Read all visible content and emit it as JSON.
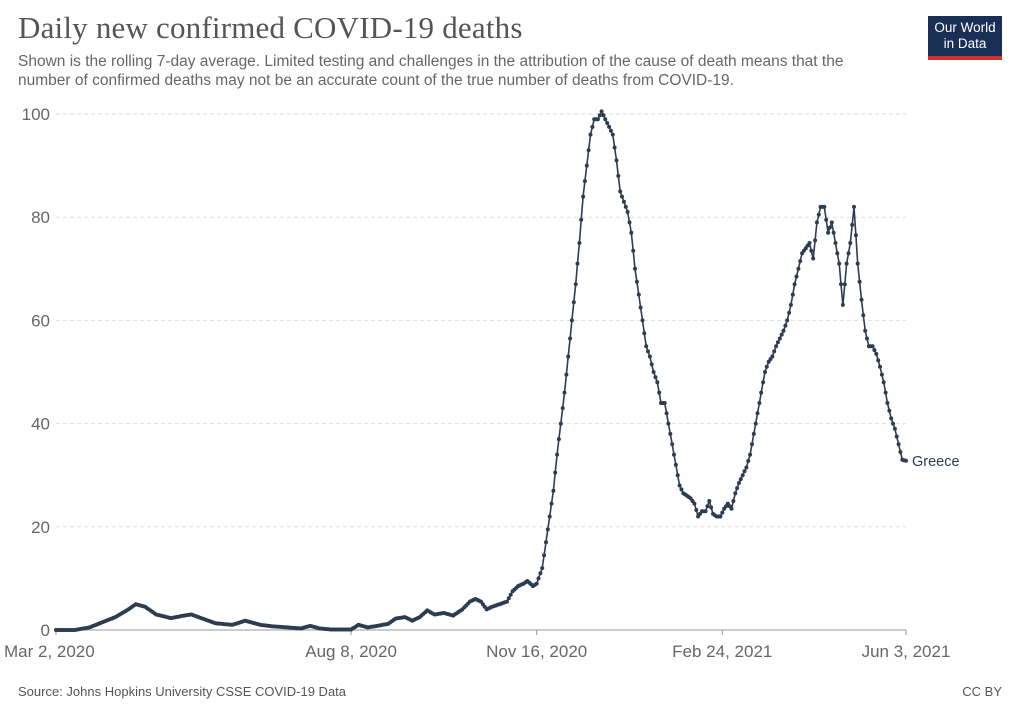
{
  "title": "Daily new confirmed COVID-19 deaths",
  "subtitle": "Shown is the rolling 7-day average. Limited testing and challenges in the attribution of the cause of death means that the number of confirmed deaths may not be an accurate count of the true number of deaths from COVID-19.",
  "logo": {
    "line1": "Our World",
    "line2": "in Data"
  },
  "footer": {
    "source": "Source: Johns Hopkins University CSSE COVID-19 Data",
    "license": "CC BY"
  },
  "colors": {
    "line": "#2e3c52",
    "grid": "#dddddd",
    "axis_text": "#666666",
    "logo_bg": "#1a2f56",
    "logo_accent": "#d0312d"
  },
  "chart_data": {
    "type": "line",
    "xlim": [
      "2020-03-02",
      "2021-06-03"
    ],
    "ylim": [
      0,
      100
    ],
    "y_ticks": [
      0,
      20,
      40,
      60,
      80,
      100
    ],
    "x_ticks": [
      "2020-03-02",
      "2020-08-08",
      "2020-11-16",
      "2021-02-24",
      "2021-06-03"
    ],
    "x_tick_labels": [
      "Mar 2, 2020",
      "Aug 8, 2020",
      "Nov 16, 2020",
      "Feb 24, 2021",
      "Jun 3, 2021"
    ],
    "grid": "horizontal-dashed",
    "series": [
      {
        "name": "Greece",
        "label_position": "end",
        "points": [
          [
            "2020-03-02",
            0
          ],
          [
            "2020-03-12",
            0
          ],
          [
            "2020-03-20",
            0.5
          ],
          [
            "2020-03-27",
            1.5
          ],
          [
            "2020-04-03",
            2.5
          ],
          [
            "2020-04-10",
            4
          ],
          [
            "2020-04-14",
            5
          ],
          [
            "2020-04-19",
            4.5
          ],
          [
            "2020-04-25",
            3
          ],
          [
            "2020-05-03",
            2.3
          ],
          [
            "2020-05-10",
            2.8
          ],
          [
            "2020-05-14",
            3
          ],
          [
            "2020-05-20",
            2.2
          ],
          [
            "2020-05-27",
            1.3
          ],
          [
            "2020-06-05",
            1
          ],
          [
            "2020-06-12",
            1.8
          ],
          [
            "2020-06-20",
            1
          ],
          [
            "2020-06-27",
            0.7
          ],
          [
            "2020-07-05",
            0.5
          ],
          [
            "2020-07-12",
            0.3
          ],
          [
            "2020-07-17",
            0.8
          ],
          [
            "2020-07-22",
            0.3
          ],
          [
            "2020-07-28",
            0.1
          ],
          [
            "2020-08-04",
            0.1
          ],
          [
            "2020-08-08",
            0.1
          ],
          [
            "2020-08-12",
            1
          ],
          [
            "2020-08-17",
            0.5
          ],
          [
            "2020-08-22",
            0.8
          ],
          [
            "2020-08-28",
            1.2
          ],
          [
            "2020-09-01",
            2.2
          ],
          [
            "2020-09-06",
            2.5
          ],
          [
            "2020-09-10",
            1.8
          ],
          [
            "2020-09-14",
            2.5
          ],
          [
            "2020-09-18",
            3.8
          ],
          [
            "2020-09-22",
            3
          ],
          [
            "2020-09-27",
            3.3
          ],
          [
            "2020-10-02",
            2.8
          ],
          [
            "2020-10-07",
            4
          ],
          [
            "2020-10-11",
            5.5
          ],
          [
            "2020-10-14",
            6
          ],
          [
            "2020-10-17",
            5.5
          ],
          [
            "2020-10-20",
            4
          ],
          [
            "2020-10-23",
            4.5
          ],
          [
            "2020-10-27",
            5
          ],
          [
            "2020-10-31",
            5.5
          ],
          [
            "2020-11-03",
            7.5
          ],
          [
            "2020-11-06",
            8.5
          ],
          [
            "2020-11-09",
            9
          ],
          [
            "2020-11-11",
            9.5
          ],
          [
            "2020-11-14",
            8.5
          ],
          [
            "2020-11-16",
            9
          ],
          [
            "2020-11-19",
            12
          ],
          [
            "2020-11-21",
            17
          ],
          [
            "2020-11-23",
            22
          ],
          [
            "2020-11-25",
            27
          ],
          [
            "2020-11-27",
            34
          ],
          [
            "2020-11-29",
            40
          ],
          [
            "2020-12-01",
            46
          ],
          [
            "2020-12-03",
            53
          ],
          [
            "2020-12-05",
            60
          ],
          [
            "2020-12-07",
            67
          ],
          [
            "2020-12-09",
            75
          ],
          [
            "2020-12-11",
            84
          ],
          [
            "2020-12-13",
            90
          ],
          [
            "2020-12-15",
            96
          ],
          [
            "2020-12-17",
            99
          ],
          [
            "2020-12-19",
            99
          ],
          [
            "2020-12-21",
            100.5
          ],
          [
            "2020-12-23",
            99
          ],
          [
            "2020-12-25",
            97.5
          ],
          [
            "2020-12-27",
            96
          ],
          [
            "2020-12-29",
            91
          ],
          [
            "2020-12-31",
            85
          ],
          [
            "2021-01-02",
            83
          ],
          [
            "2021-01-04",
            81
          ],
          [
            "2021-01-06",
            77
          ],
          [
            "2021-01-08",
            70
          ],
          [
            "2021-01-10",
            65
          ],
          [
            "2021-01-12",
            60
          ],
          [
            "2021-01-14",
            55
          ],
          [
            "2021-01-16",
            53
          ],
          [
            "2021-01-18",
            50
          ],
          [
            "2021-01-20",
            48
          ],
          [
            "2021-01-22",
            44
          ],
          [
            "2021-01-24",
            44
          ],
          [
            "2021-01-26",
            40
          ],
          [
            "2021-01-28",
            36
          ],
          [
            "2021-01-30",
            32
          ],
          [
            "2021-02-01",
            28
          ],
          [
            "2021-02-03",
            26.5
          ],
          [
            "2021-02-05",
            26
          ],
          [
            "2021-02-07",
            25.5
          ],
          [
            "2021-02-09",
            24.5
          ],
          [
            "2021-02-11",
            22
          ],
          [
            "2021-02-13",
            23
          ],
          [
            "2021-02-15",
            23
          ],
          [
            "2021-02-17",
            25
          ],
          [
            "2021-02-19",
            22.5
          ],
          [
            "2021-02-21",
            22
          ],
          [
            "2021-02-23",
            22
          ],
          [
            "2021-02-25",
            23.5
          ],
          [
            "2021-02-27",
            24.5
          ],
          [
            "2021-03-01",
            23.5
          ],
          [
            "2021-03-03",
            26.5
          ],
          [
            "2021-03-05",
            28.5
          ],
          [
            "2021-03-07",
            30
          ],
          [
            "2021-03-09",
            31.5
          ],
          [
            "2021-03-11",
            34
          ],
          [
            "2021-03-13",
            38
          ],
          [
            "2021-03-15",
            42
          ],
          [
            "2021-03-17",
            46
          ],
          [
            "2021-03-19",
            50
          ],
          [
            "2021-03-21",
            52
          ],
          [
            "2021-03-23",
            53
          ],
          [
            "2021-03-25",
            55
          ],
          [
            "2021-03-27",
            56.5
          ],
          [
            "2021-03-29",
            58
          ],
          [
            "2021-03-31",
            60
          ],
          [
            "2021-04-02",
            63
          ],
          [
            "2021-04-04",
            67
          ],
          [
            "2021-04-06",
            70
          ],
          [
            "2021-04-08",
            73
          ],
          [
            "2021-04-10",
            74
          ],
          [
            "2021-04-12",
            75
          ],
          [
            "2021-04-14",
            72
          ],
          [
            "2021-04-16",
            79
          ],
          [
            "2021-04-18",
            82
          ],
          [
            "2021-04-20",
            82
          ],
          [
            "2021-04-22",
            77
          ],
          [
            "2021-04-24",
            79
          ],
          [
            "2021-04-26",
            75
          ],
          [
            "2021-04-28",
            71
          ],
          [
            "2021-04-30",
            63
          ],
          [
            "2021-05-02",
            71
          ],
          [
            "2021-05-04",
            75
          ],
          [
            "2021-05-06",
            82
          ],
          [
            "2021-05-08",
            71
          ],
          [
            "2021-05-10",
            64
          ],
          [
            "2021-05-12",
            58
          ],
          [
            "2021-05-14",
            55
          ],
          [
            "2021-05-16",
            55
          ],
          [
            "2021-05-18",
            53.5
          ],
          [
            "2021-05-20",
            51
          ],
          [
            "2021-05-22",
            48
          ],
          [
            "2021-05-24",
            44
          ],
          [
            "2021-05-26",
            41
          ],
          [
            "2021-05-28",
            39
          ],
          [
            "2021-05-30",
            36
          ],
          [
            "2021-06-01",
            33
          ],
          [
            "2021-06-03",
            32.8
          ]
        ]
      }
    ]
  }
}
